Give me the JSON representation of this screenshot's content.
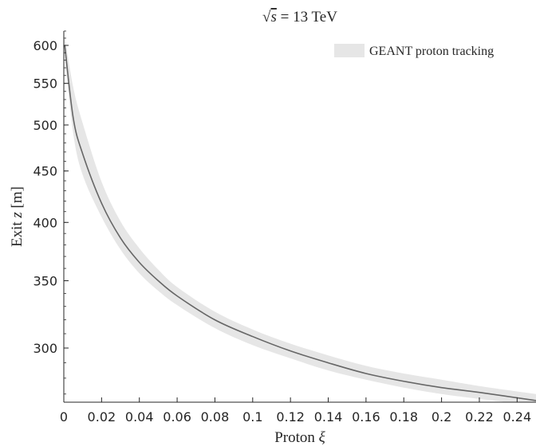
{
  "chart_data": {
    "type": "line",
    "title": "√s = 13 TeV",
    "title_parts": {
      "sqrt": "√",
      "radicand": "s",
      "rest": " = 13 TeV"
    },
    "xlabel": "Proton ξ",
    "xlabel_parts": {
      "text": "Proton ",
      "symbol": "ξ"
    },
    "ylabel": "Exit z [m]",
    "ylabel_parts": {
      "pre": "Exit ",
      "symbol": "z",
      "post": " [m]"
    },
    "xlim": [
      0,
      0.25
    ],
    "ylim": [
      265,
      620
    ],
    "y_scale": "log",
    "grid": false,
    "legend_position": "top-right",
    "x_ticks": [
      0,
      0.02,
      0.04,
      0.06,
      0.08,
      0.1,
      0.12,
      0.14,
      0.16,
      0.18,
      0.2,
      0.22,
      0.24
    ],
    "x_tick_labels": [
      "0",
      "0.02",
      "0.04",
      "0.06",
      "0.08",
      "0.1",
      "0.12",
      "0.14",
      "0.16",
      "0.18",
      "0.2",
      "0.22",
      "0.24"
    ],
    "y_ticks": [
      300,
      350,
      400,
      450,
      500,
      550,
      600
    ],
    "y_tick_labels": [
      "300",
      "350",
      "400",
      "450",
      "500",
      "550",
      "600"
    ],
    "series": [
      {
        "name": "GEANT proton tracking",
        "kind": "band",
        "color": "#e6e6e6",
        "x": [
          0.0005,
          0.005,
          0.01,
          0.02,
          0.03,
          0.04,
          0.05,
          0.06,
          0.08,
          0.1,
          0.12,
          0.14,
          0.16,
          0.18,
          0.2,
          0.22,
          0.25
        ],
        "upper": [
          612,
          545,
          502,
          439,
          401,
          377,
          359,
          345,
          326,
          313,
          303,
          295,
          288,
          283,
          279,
          275,
          270
        ],
        "lower": [
          585,
          490,
          446,
          405,
          376,
          356,
          342,
          331,
          314,
          302,
          293,
          285,
          279,
          274,
          270,
          267,
          263
        ]
      },
      {
        "kind": "line",
        "color": "#666666",
        "x": [
          0.0005,
          0.005,
          0.01,
          0.02,
          0.03,
          0.04,
          0.05,
          0.06,
          0.08,
          0.1,
          0.12,
          0.14,
          0.16,
          0.18,
          0.2,
          0.22,
          0.25
        ],
        "values": [
          600,
          508,
          468,
          418,
          386,
          365,
          350,
          338,
          320,
          308,
          298,
          290,
          283,
          278,
          274,
          271,
          266
        ]
      }
    ],
    "legend": [
      {
        "label": "GEANT proton tracking",
        "color": "#e6e6e6"
      }
    ]
  }
}
